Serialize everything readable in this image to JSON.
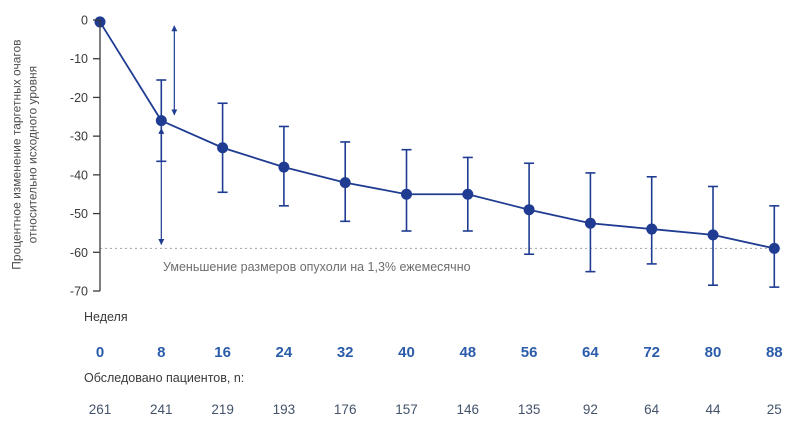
{
  "chart_data": {
    "type": "line",
    "title": "",
    "xlabel": "Неделя",
    "ylabel": "Процентное изменение таргетных очагов относительно исходного уровня",
    "annotation": "Уменьшение размеров опухоли на 1,3% ежемесячно",
    "patients_label": "Обследовано пациентов, n:",
    "x": [
      0,
      8,
      16,
      24,
      32,
      40,
      48,
      56,
      64,
      72,
      80,
      88
    ],
    "values": [
      -0.5,
      -26,
      -33,
      -38,
      -42,
      -45,
      -45,
      -49,
      -52.5,
      -54,
      -55.5,
      -59
    ],
    "error_upper": [
      -0.5,
      -15.5,
      -21.5,
      -27.5,
      -31.5,
      -33.5,
      -35.5,
      -37,
      -39.5,
      -40.5,
      -43,
      -48
    ],
    "error_lower": [
      -0.5,
      -36.5,
      -44.5,
      -48,
      -52,
      -54.5,
      -54.5,
      -60.5,
      -65,
      -63,
      -68.5,
      -69
    ],
    "patients": [
      261,
      241,
      219,
      193,
      176,
      157,
      146,
      135,
      92,
      64,
      44,
      25
    ],
    "yticks": [
      0,
      -10,
      -20,
      -30,
      -40,
      -50,
      -60,
      -70
    ],
    "ylim": [
      -70,
      0
    ],
    "reference_line": -59,
    "grid": "off",
    "legend": "none",
    "arrows": [
      {
        "x_week": 9.7,
        "from": -1.5,
        "to": -24.5
      },
      {
        "x_week": 8,
        "from": -28,
        "to": -58
      }
    ],
    "line_color": "#1f3c92",
    "week_tick_color": "#2a5caa",
    "patients_color": "#43536b",
    "axis_color": "#3a3a3a",
    "reference_color": "#a3a3a3"
  }
}
